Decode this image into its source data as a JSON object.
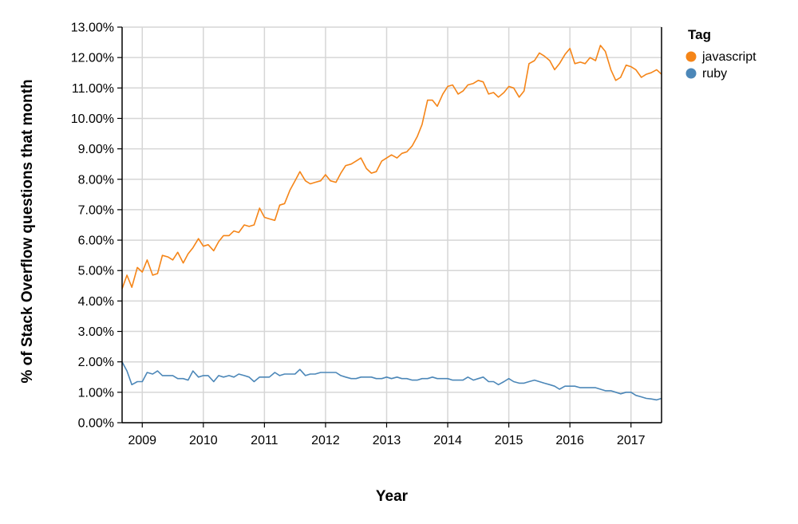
{
  "chart_data": {
    "type": "line",
    "title": "",
    "xlabel": "Year",
    "ylabel": "% of Stack Overflow questions that month",
    "x_tick_labels": [
      "2009",
      "2010",
      "2011",
      "2012",
      "2013",
      "2014",
      "2015",
      "2016",
      "2017"
    ],
    "y_tick_labels": [
      "0.00%",
      "1.00%",
      "2.00%",
      "3.00%",
      "4.00%",
      "5.00%",
      "6.00%",
      "7.00%",
      "8.00%",
      "9.00%",
      "10.00%",
      "11.00%",
      "12.00%",
      "13.00%"
    ],
    "xlim": [
      2008.67,
      2017.5
    ],
    "ylim": [
      0,
      13
    ],
    "grid": true,
    "legend": {
      "title": "Tag",
      "position": "top-right"
    },
    "series": [
      {
        "name": "javascript",
        "color": "#f58518",
        "points": [
          [
            2008.67,
            4.4
          ],
          [
            2008.75,
            4.85
          ],
          [
            2008.83,
            4.45
          ],
          [
            2008.92,
            5.1
          ],
          [
            2009.0,
            4.95
          ],
          [
            2009.08,
            5.35
          ],
          [
            2009.17,
            4.85
          ],
          [
            2009.25,
            4.9
          ],
          [
            2009.33,
            5.5
          ],
          [
            2009.42,
            5.45
          ],
          [
            2009.5,
            5.35
          ],
          [
            2009.58,
            5.6
          ],
          [
            2009.67,
            5.25
          ],
          [
            2009.75,
            5.55
          ],
          [
            2009.83,
            5.75
          ],
          [
            2009.92,
            6.05
          ],
          [
            2010.0,
            5.8
          ],
          [
            2010.08,
            5.85
          ],
          [
            2010.17,
            5.65
          ],
          [
            2010.25,
            5.95
          ],
          [
            2010.33,
            6.15
          ],
          [
            2010.42,
            6.15
          ],
          [
            2010.5,
            6.3
          ],
          [
            2010.58,
            6.25
          ],
          [
            2010.67,
            6.5
          ],
          [
            2010.75,
            6.45
          ],
          [
            2010.83,
            6.5
          ],
          [
            2010.92,
            7.05
          ],
          [
            2011.0,
            6.75
          ],
          [
            2011.08,
            6.7
          ],
          [
            2011.17,
            6.65
          ],
          [
            2011.25,
            7.15
          ],
          [
            2011.33,
            7.2
          ],
          [
            2011.42,
            7.65
          ],
          [
            2011.5,
            7.95
          ],
          [
            2011.58,
            8.25
          ],
          [
            2011.67,
            7.95
          ],
          [
            2011.75,
            7.85
          ],
          [
            2011.83,
            7.9
          ],
          [
            2011.92,
            7.95
          ],
          [
            2012.0,
            8.15
          ],
          [
            2012.08,
            7.95
          ],
          [
            2012.17,
            7.9
          ],
          [
            2012.25,
            8.2
          ],
          [
            2012.33,
            8.45
          ],
          [
            2012.42,
            8.5
          ],
          [
            2012.5,
            8.6
          ],
          [
            2012.58,
            8.7
          ],
          [
            2012.67,
            8.35
          ],
          [
            2012.75,
            8.2
          ],
          [
            2012.83,
            8.25
          ],
          [
            2012.92,
            8.6
          ],
          [
            2013.0,
            8.7
          ],
          [
            2013.08,
            8.8
          ],
          [
            2013.17,
            8.7
          ],
          [
            2013.25,
            8.85
          ],
          [
            2013.33,
            8.9
          ],
          [
            2013.42,
            9.1
          ],
          [
            2013.5,
            9.4
          ],
          [
            2013.58,
            9.8
          ],
          [
            2013.67,
            10.6
          ],
          [
            2013.75,
            10.6
          ],
          [
            2013.83,
            10.4
          ],
          [
            2013.92,
            10.8
          ],
          [
            2014.0,
            11.05
          ],
          [
            2014.08,
            11.1
          ],
          [
            2014.17,
            10.8
          ],
          [
            2014.25,
            10.9
          ],
          [
            2014.33,
            11.1
          ],
          [
            2014.42,
            11.15
          ],
          [
            2014.5,
            11.25
          ],
          [
            2014.58,
            11.2
          ],
          [
            2014.67,
            10.8
          ],
          [
            2014.75,
            10.85
          ],
          [
            2014.83,
            10.7
          ],
          [
            2014.92,
            10.85
          ],
          [
            2015.0,
            11.05
          ],
          [
            2015.08,
            11.0
          ],
          [
            2015.17,
            10.7
          ],
          [
            2015.25,
            10.9
          ],
          [
            2015.33,
            11.8
          ],
          [
            2015.42,
            11.9
          ],
          [
            2015.5,
            12.15
          ],
          [
            2015.58,
            12.05
          ],
          [
            2015.67,
            11.9
          ],
          [
            2015.75,
            11.6
          ],
          [
            2015.83,
            11.8
          ],
          [
            2015.92,
            12.1
          ],
          [
            2016.0,
            12.3
          ],
          [
            2016.08,
            11.8
          ],
          [
            2016.17,
            11.85
          ],
          [
            2016.25,
            11.8
          ],
          [
            2016.33,
            12.0
          ],
          [
            2016.42,
            11.9
          ],
          [
            2016.5,
            12.4
          ],
          [
            2016.58,
            12.2
          ],
          [
            2016.67,
            11.6
          ],
          [
            2016.75,
            11.25
          ],
          [
            2016.83,
            11.35
          ],
          [
            2016.92,
            11.75
          ],
          [
            2017.0,
            11.7
          ],
          [
            2017.08,
            11.6
          ],
          [
            2017.17,
            11.35
          ],
          [
            2017.25,
            11.45
          ],
          [
            2017.33,
            11.5
          ],
          [
            2017.42,
            11.6
          ],
          [
            2017.5,
            11.45
          ]
        ]
      },
      {
        "name": "ruby",
        "color": "#4c87b8",
        "points": [
          [
            2008.67,
            2.0
          ],
          [
            2008.75,
            1.7
          ],
          [
            2008.83,
            1.25
          ],
          [
            2008.92,
            1.35
          ],
          [
            2009.0,
            1.35
          ],
          [
            2009.08,
            1.65
          ],
          [
            2009.17,
            1.6
          ],
          [
            2009.25,
            1.7
          ],
          [
            2009.33,
            1.55
          ],
          [
            2009.42,
            1.55
          ],
          [
            2009.5,
            1.55
          ],
          [
            2009.58,
            1.45
          ],
          [
            2009.67,
            1.45
          ],
          [
            2009.75,
            1.4
          ],
          [
            2009.83,
            1.7
          ],
          [
            2009.92,
            1.5
          ],
          [
            2010.0,
            1.55
          ],
          [
            2010.08,
            1.55
          ],
          [
            2010.17,
            1.35
          ],
          [
            2010.25,
            1.55
          ],
          [
            2010.33,
            1.5
          ],
          [
            2010.42,
            1.55
          ],
          [
            2010.5,
            1.5
          ],
          [
            2010.58,
            1.6
          ],
          [
            2010.67,
            1.55
          ],
          [
            2010.75,
            1.5
          ],
          [
            2010.83,
            1.35
          ],
          [
            2010.92,
            1.5
          ],
          [
            2011.0,
            1.5
          ],
          [
            2011.08,
            1.5
          ],
          [
            2011.17,
            1.65
          ],
          [
            2011.25,
            1.55
          ],
          [
            2011.33,
            1.6
          ],
          [
            2011.42,
            1.6
          ],
          [
            2011.5,
            1.6
          ],
          [
            2011.58,
            1.75
          ],
          [
            2011.67,
            1.55
          ],
          [
            2011.75,
            1.6
          ],
          [
            2011.83,
            1.6
          ],
          [
            2011.92,
            1.65
          ],
          [
            2012.0,
            1.65
          ],
          [
            2012.08,
            1.65
          ],
          [
            2012.17,
            1.65
          ],
          [
            2012.25,
            1.55
          ],
          [
            2012.33,
            1.5
          ],
          [
            2012.42,
            1.45
          ],
          [
            2012.5,
            1.45
          ],
          [
            2012.58,
            1.5
          ],
          [
            2012.67,
            1.5
          ],
          [
            2012.75,
            1.5
          ],
          [
            2012.83,
            1.45
          ],
          [
            2012.92,
            1.45
          ],
          [
            2013.0,
            1.5
          ],
          [
            2013.08,
            1.45
          ],
          [
            2013.17,
            1.5
          ],
          [
            2013.25,
            1.45
          ],
          [
            2013.33,
            1.45
          ],
          [
            2013.42,
            1.4
          ],
          [
            2013.5,
            1.4
          ],
          [
            2013.58,
            1.45
          ],
          [
            2013.67,
            1.45
          ],
          [
            2013.75,
            1.5
          ],
          [
            2013.83,
            1.45
          ],
          [
            2013.92,
            1.45
          ],
          [
            2014.0,
            1.45
          ],
          [
            2014.08,
            1.4
          ],
          [
            2014.17,
            1.4
          ],
          [
            2014.25,
            1.4
          ],
          [
            2014.33,
            1.5
          ],
          [
            2014.42,
            1.4
          ],
          [
            2014.5,
            1.45
          ],
          [
            2014.58,
            1.5
          ],
          [
            2014.67,
            1.35
          ],
          [
            2014.75,
            1.35
          ],
          [
            2014.83,
            1.25
          ],
          [
            2014.92,
            1.35
          ],
          [
            2015.0,
            1.45
          ],
          [
            2015.08,
            1.35
          ],
          [
            2015.17,
            1.3
          ],
          [
            2015.25,
            1.3
          ],
          [
            2015.33,
            1.35
          ],
          [
            2015.42,
            1.4
          ],
          [
            2015.5,
            1.35
          ],
          [
            2015.58,
            1.3
          ],
          [
            2015.67,
            1.25
          ],
          [
            2015.75,
            1.2
          ],
          [
            2015.83,
            1.1
          ],
          [
            2015.92,
            1.2
          ],
          [
            2016.0,
            1.2
          ],
          [
            2016.08,
            1.2
          ],
          [
            2016.17,
            1.15
          ],
          [
            2016.25,
            1.15
          ],
          [
            2016.33,
            1.15
          ],
          [
            2016.42,
            1.15
          ],
          [
            2016.5,
            1.1
          ],
          [
            2016.58,
            1.05
          ],
          [
            2016.67,
            1.05
          ],
          [
            2016.75,
            1.0
          ],
          [
            2016.83,
            0.95
          ],
          [
            2016.92,
            1.0
          ],
          [
            2017.0,
            1.0
          ],
          [
            2017.08,
            0.9
          ],
          [
            2017.17,
            0.85
          ],
          [
            2017.25,
            0.8
          ],
          [
            2017.33,
            0.78
          ],
          [
            2017.42,
            0.75
          ],
          [
            2017.5,
            0.8
          ]
        ]
      }
    ]
  }
}
